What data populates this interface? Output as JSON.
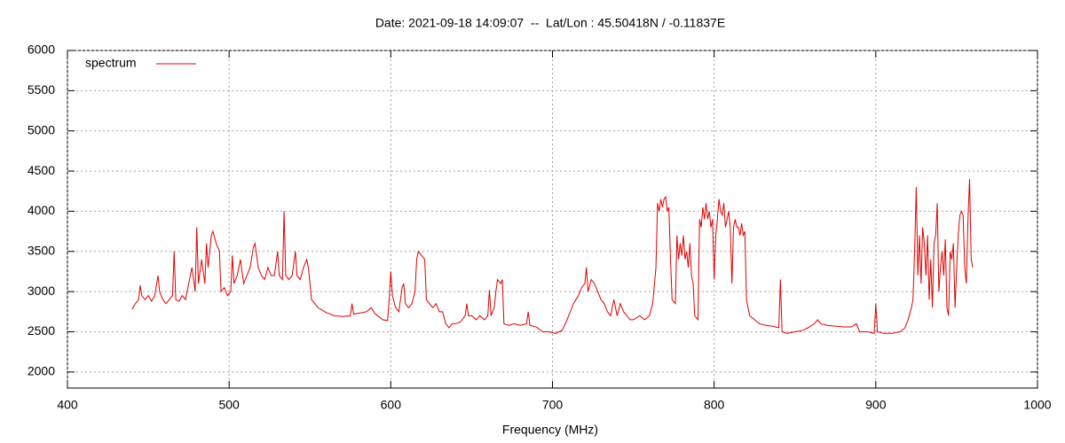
{
  "chart_data": {
    "type": "line",
    "title": "Date: 2021-09-18 14:09:07  --  Lat/Lon : 45.50418N / -0.11837E",
    "x_label": "Frequency (MHz)",
    "xlim": [
      400,
      1000
    ],
    "xticks": [
      400,
      500,
      600,
      700,
      800,
      900,
      1000
    ],
    "ylim": [
      1800,
      6000
    ],
    "yticks": [
      2000,
      2500,
      3000,
      3500,
      4000,
      4500,
      5000,
      5500,
      6000
    ],
    "grid": true,
    "legend": "top-left",
    "series": [
      {
        "name": "spectrum",
        "color": "#e00000",
        "x": [
          440,
          442,
          444,
          445,
          446,
          448,
          450,
          452,
          454,
          456,
          457,
          459,
          461,
          463,
          465,
          466,
          467,
          469,
          471,
          473,
          475,
          477,
          479,
          480,
          481,
          483,
          485,
          486,
          487,
          489,
          490,
          492,
          494,
          495,
          497,
          499,
          501,
          502,
          503,
          505,
          507,
          509,
          511,
          513,
          515,
          516,
          518,
          520,
          522,
          524,
          526,
          528,
          530,
          531,
          533,
          534,
          535,
          537,
          539,
          541,
          542,
          544,
          546,
          548,
          549,
          551,
          553,
          555,
          560,
          565,
          570,
          575,
          576,
          577,
          580,
          585,
          588,
          590,
          595,
          598,
          599,
          600,
          601,
          603,
          605,
          607,
          608,
          609,
          611,
          613,
          615,
          616,
          617,
          619,
          621,
          622,
          624,
          626,
          628,
          630,
          632,
          634,
          636,
          638,
          640,
          643,
          646,
          647,
          648,
          650,
          653,
          655,
          658,
          660,
          661,
          662,
          664,
          665,
          666,
          668,
          669,
          670,
          673,
          676,
          680,
          684,
          685,
          686,
          690,
          694,
          698,
          702,
          706,
          708,
          710,
          713,
          716,
          718,
          720,
          721,
          722,
          724,
          726,
          728,
          730,
          732,
          734,
          736,
          738,
          740,
          742,
          744,
          746,
          748,
          750,
          754,
          757,
          760,
          762,
          764,
          765,
          766,
          767,
          768,
          769,
          770,
          771,
          772,
          773,
          774,
          776,
          777,
          778,
          779,
          780,
          781,
          782,
          783,
          784,
          785,
          786,
          787,
          788,
          790,
          791,
          792,
          793,
          794,
          795,
          796,
          797,
          798,
          799,
          800,
          801,
          802,
          803,
          804,
          805,
          806,
          807,
          808,
          809,
          810,
          811,
          812,
          813,
          814,
          815,
          816,
          817,
          818,
          819,
          820,
          822,
          825,
          828,
          832,
          836,
          840,
          841,
          842,
          845,
          850,
          855,
          858,
          862,
          864,
          866,
          870,
          875,
          880,
          885,
          888,
          890,
          895,
          899,
          900,
          901,
          905,
          910,
          915,
          918,
          920,
          922,
          923,
          924,
          925,
          926,
          927,
          928,
          929,
          930,
          931,
          932,
          933,
          934,
          935,
          936,
          937,
          938,
          939,
          940,
          941,
          942,
          943,
          944,
          945,
          946,
          947,
          948,
          949,
          950,
          951,
          952,
          953,
          954,
          955,
          956,
          957,
          958,
          959,
          960
        ],
        "values": [
          2780,
          2850,
          2900,
          3080,
          2950,
          2900,
          2950,
          2880,
          2950,
          3200,
          3000,
          2900,
          2850,
          2900,
          2950,
          3500,
          2900,
          2880,
          2950,
          2900,
          3100,
          3300,
          3000,
          3800,
          3100,
          3400,
          3100,
          3600,
          3300,
          3700,
          3750,
          3600,
          3500,
          3000,
          3050,
          2950,
          3000,
          3450,
          3100,
          3200,
          3400,
          3100,
          3200,
          3300,
          3550,
          3600,
          3300,
          3200,
          3150,
          3300,
          3200,
          3200,
          3500,
          3200,
          3150,
          4000,
          3200,
          3150,
          3200,
          3500,
          3200,
          3150,
          3300,
          3400,
          3300,
          2900,
          2850,
          2800,
          2740,
          2700,
          2690,
          2700,
          2850,
          2720,
          2730,
          2750,
          2800,
          2730,
          2650,
          2640,
          2900,
          3250,
          2950,
          2800,
          2750,
          3050,
          3100,
          2850,
          2800,
          2850,
          3000,
          3400,
          3500,
          3450,
          3400,
          2900,
          2850,
          2800,
          2850,
          2750,
          2750,
          2600,
          2550,
          2600,
          2600,
          2620,
          2700,
          2850,
          2700,
          2700,
          2650,
          2700,
          2650,
          2700,
          3020,
          2700,
          2800,
          3000,
          3150,
          3100,
          3150,
          2600,
          2580,
          2600,
          2580,
          2600,
          2750,
          2580,
          2560,
          2500,
          2500,
          2480,
          2520,
          2600,
          2700,
          2850,
          2950,
          3050,
          3100,
          3300,
          3000,
          3150,
          3100,
          3000,
          2900,
          2850,
          2750,
          2700,
          2900,
          2700,
          2850,
          2750,
          2700,
          2650,
          2650,
          2700,
          2650,
          2700,
          2850,
          3300,
          4100,
          4000,
          4150,
          4050,
          4150,
          4180,
          4000,
          4050,
          3400,
          2900,
          2850,
          3700,
          3400,
          3600,
          3450,
          3700,
          3400,
          3500,
          3300,
          3600,
          3200,
          3100,
          2700,
          2650,
          3900,
          3800,
          4050,
          3900,
          4100,
          3900,
          4000,
          3800,
          3900,
          3150,
          3700,
          3900,
          4150,
          4000,
          3950,
          4100,
          3800,
          3900,
          4000,
          3800,
          3100,
          3800,
          3900,
          3800,
          3800,
          3700,
          3850,
          3700,
          3750,
          2900,
          2700,
          2650,
          2600,
          2580,
          2570,
          2550,
          3150,
          2500,
          2480,
          2500,
          2520,
          2550,
          2600,
          2650,
          2600,
          2580,
          2570,
          2560,
          2560,
          2600,
          2500,
          2500,
          2480,
          2850,
          2500,
          2480,
          2480,
          2500,
          2550,
          2650,
          2800,
          2900,
          3500,
          4300,
          3200,
          3700,
          3100,
          3800,
          3600,
          3200,
          3700,
          2900,
          3400,
          2800,
          3600,
          3700,
          4100,
          3000,
          3300,
          3500,
          3200,
          3650,
          2800,
          2700,
          3500,
          3400,
          3600,
          2800,
          3300,
          3700,
          3950,
          4000,
          3950,
          3300,
          3100,
          3900,
          4400,
          3400,
          3300
        ]
      }
    ]
  }
}
